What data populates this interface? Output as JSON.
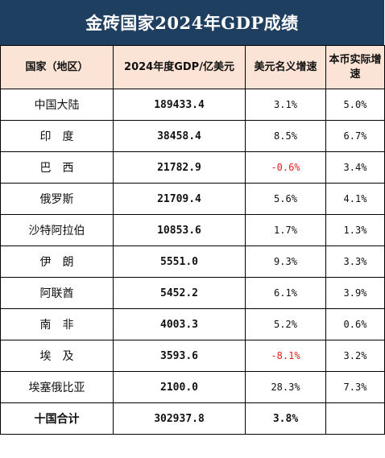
{
  "title": "金砖国家2024年GDP成绩",
  "headers": {
    "country": "国家（地区）",
    "gdp": "2024年度GDP/亿美元",
    "usd_growth": "美元名义增速",
    "local_growth": "本币实际增速"
  },
  "rows": [
    {
      "country": "中国大陆",
      "gdp": "189433.4",
      "usd_growth": "3.1%",
      "local_growth": "5.0%"
    },
    {
      "country": "印　度",
      "gdp": "38458.4",
      "usd_growth": "8.5%",
      "local_growth": "6.7%"
    },
    {
      "country": "巴　西",
      "gdp": "21782.9",
      "usd_growth": "-0.6%",
      "local_growth": "3.4%"
    },
    {
      "country": "俄罗斯",
      "gdp": "21709.4",
      "usd_growth": "5.6%",
      "local_growth": "4.1%"
    },
    {
      "country": "沙特阿拉伯",
      "gdp": "10853.6",
      "usd_growth": "1.7%",
      "local_growth": "1.3%"
    },
    {
      "country": "伊　朗",
      "gdp": "5551.0",
      "usd_growth": "9.3%",
      "local_growth": "3.3%"
    },
    {
      "country": "阿联酋",
      "gdp": "5452.2",
      "usd_growth": "6.1%",
      "local_growth": "3.9%"
    },
    {
      "country": "南　非",
      "gdp": "4003.3",
      "usd_growth": "5.2%",
      "local_growth": "0.6%"
    },
    {
      "country": "埃　及",
      "gdp": "3593.6",
      "usd_growth": "-8.1%",
      "local_growth": "3.2%"
    },
    {
      "country": "埃塞俄比亚",
      "gdp": "2100.0",
      "usd_growth": "28.3%",
      "local_growth": "7.3%"
    }
  ],
  "total": {
    "country": "十国合计",
    "gdp": "302937.8",
    "usd_growth": "3.8%",
    "local_growth": ""
  },
  "colors": {
    "title_bg": "#1f3f60",
    "header_bg": "#fbe3d6",
    "negative": "#e02020"
  }
}
